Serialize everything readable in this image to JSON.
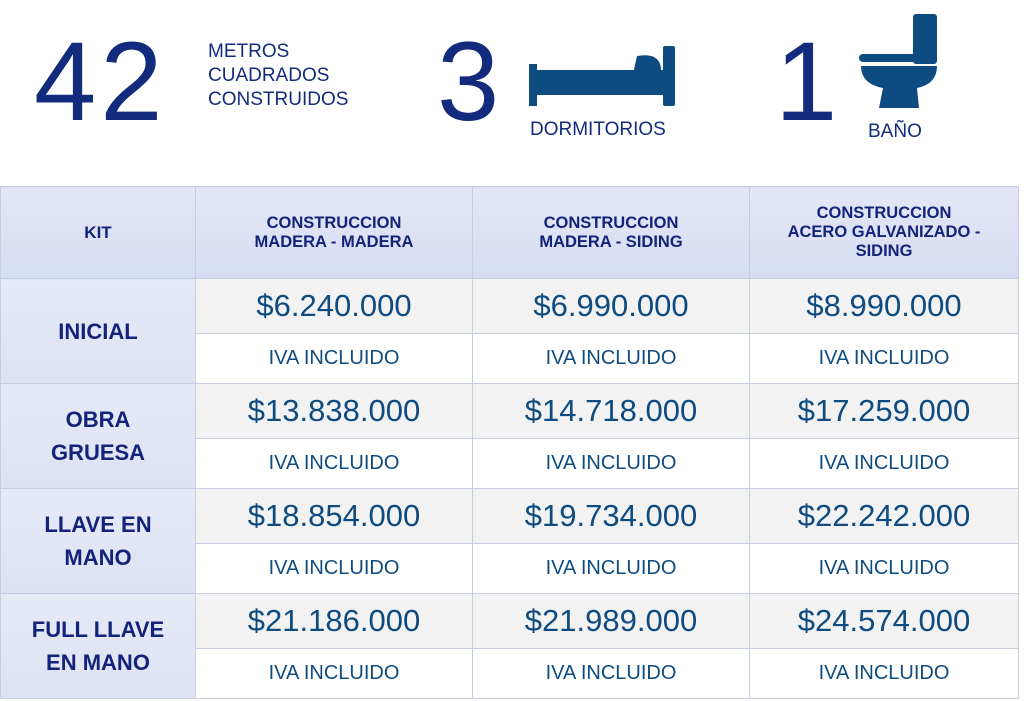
{
  "header": {
    "area": {
      "number": "42",
      "label_lines": [
        "METROS",
        "CUADRADOS",
        "CONSTRUIDOS"
      ]
    },
    "bedrooms": {
      "number": "3",
      "label": "DORMITORIOS",
      "icon": "bed-icon"
    },
    "bathrooms": {
      "number": "1",
      "label": "BAÑO",
      "icon": "toilet-icon"
    }
  },
  "colors": {
    "number": "#132b7c",
    "price": "#0e4b80",
    "header_bg": "#dde2f3",
    "price_bg": "#f2f2f2",
    "border": "#c7cde0"
  },
  "table": {
    "columns": [
      "KIT",
      "CONSTRUCCION MADERA - MADERA",
      "CONSTRUCCION MADERA - SIDING",
      "CONSTRUCCION ACERO GALVANIZADO - SIDING"
    ],
    "column_lines": [
      [
        "KIT"
      ],
      [
        "CONSTRUCCION",
        "MADERA - MADERA"
      ],
      [
        "CONSTRUCCION",
        "MADERA - SIDING"
      ],
      [
        "CONSTRUCCION",
        "ACERO GALVANIZADO -",
        "SIDING"
      ]
    ],
    "rows": [
      {
        "kit_lines": [
          "INICIAL"
        ],
        "prices": [
          "$6.240.000",
          "$6.990.000",
          "$8.990.000"
        ],
        "notes": [
          "IVA INCLUIDO",
          "IVA INCLUIDO",
          "IVA INCLUIDO"
        ]
      },
      {
        "kit_lines": [
          "OBRA",
          "GRUESA"
        ],
        "prices": [
          "$13.838.000",
          "$14.718.000",
          "$17.259.000"
        ],
        "notes": [
          "IVA INCLUIDO",
          "IVA INCLUIDO",
          "IVA INCLUIDO"
        ]
      },
      {
        "kit_lines": [
          "LLAVE EN",
          "MANO"
        ],
        "prices": [
          "$18.854.000",
          "$19.734.000",
          "$22.242.000"
        ],
        "notes": [
          "IVA INCLUIDO",
          "IVA INCLUIDO",
          "IVA INCLUIDO"
        ]
      },
      {
        "kit_lines": [
          "FULL LLAVE",
          "EN MANO"
        ],
        "prices": [
          "$21.186.000",
          "$21.989.000",
          "$24.574.000"
        ],
        "notes": [
          "IVA INCLUIDO",
          "IVA INCLUIDO",
          "IVA INCLUIDO"
        ]
      }
    ]
  }
}
